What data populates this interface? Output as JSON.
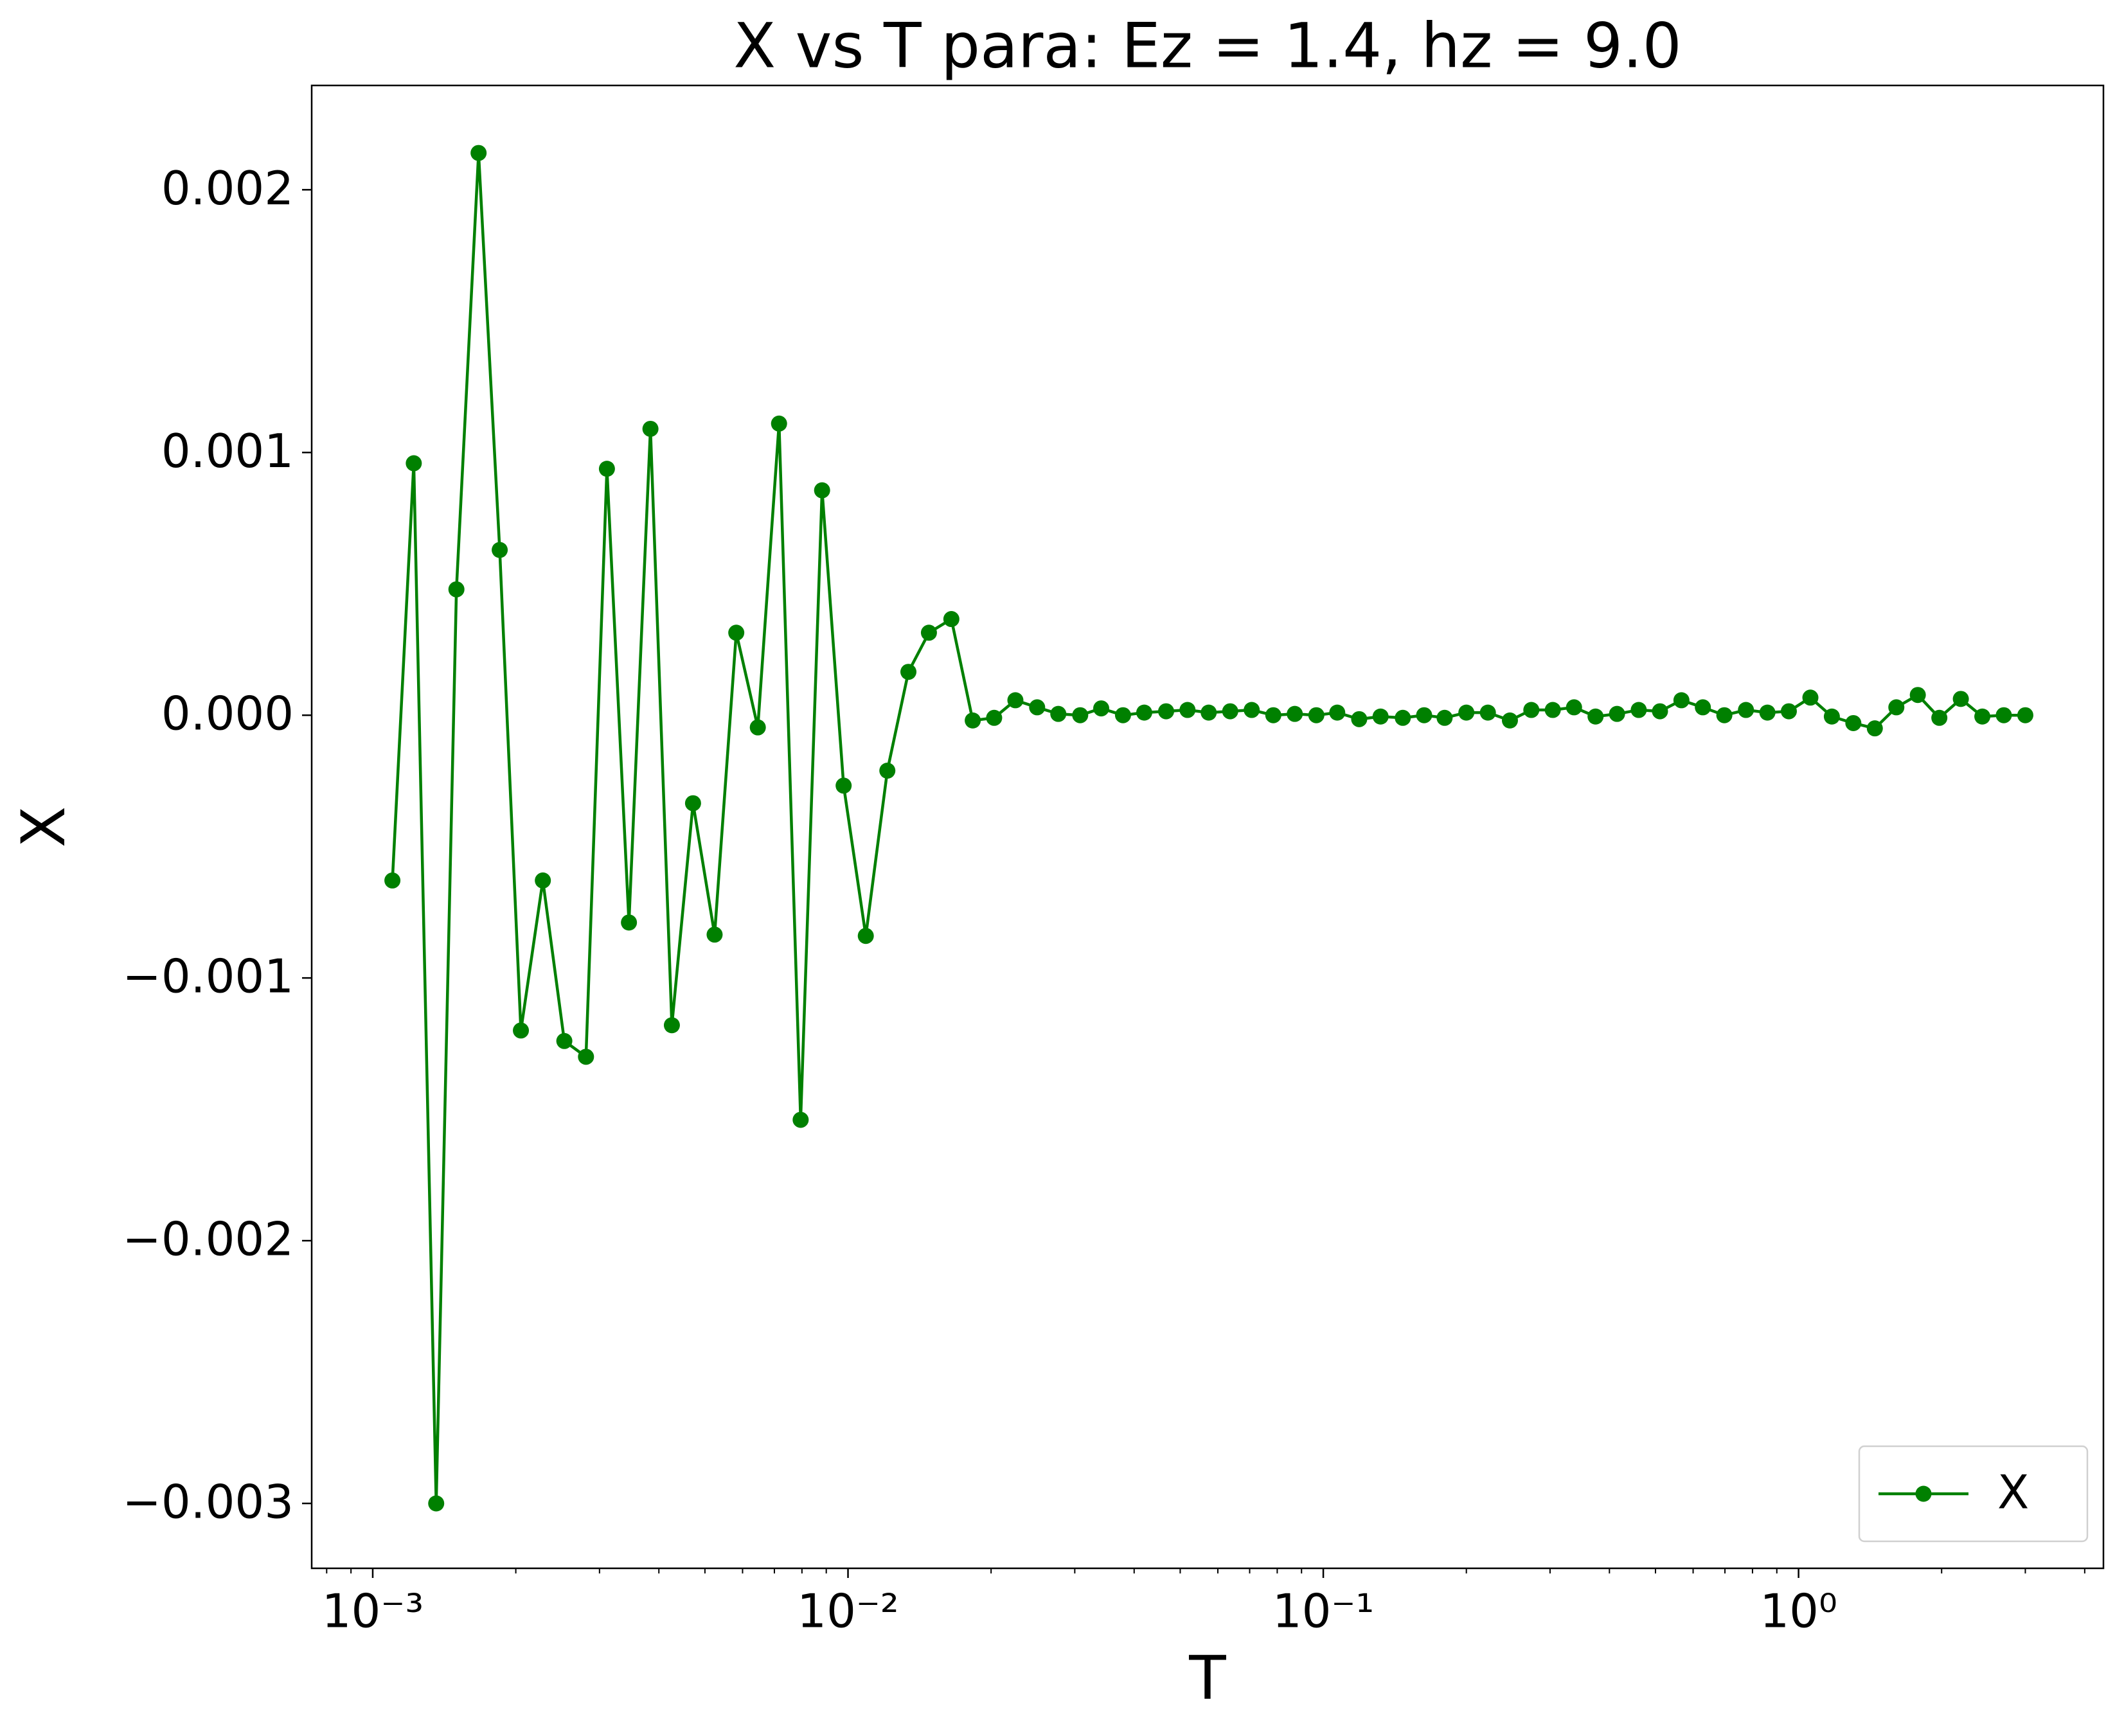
{
  "chart_data": {
    "type": "line",
    "title": "X vs T para: Ez = 1.4, hz = 9.0",
    "xlabel": "T",
    "ylabel": "X",
    "xscale": "log",
    "legend": "lower right",
    "grid": false,
    "x": [
      0.0011,
      0.00122,
      0.00136,
      0.0015,
      0.00167,
      0.00185,
      0.00205,
      0.00228,
      0.00253,
      0.00281,
      0.00311,
      0.00346,
      0.00384,
      0.00426,
      0.00472,
      0.00524,
      0.00582,
      0.00646,
      0.00716,
      0.00795,
      0.00882,
      0.00979,
      0.0109,
      0.0121,
      0.0134,
      0.0148,
      0.0165,
      0.0183,
      0.0203,
      0.0225,
      0.025,
      0.0277,
      0.0308,
      0.0341,
      0.0379,
      0.042,
      0.0467,
      0.0518,
      0.0574,
      0.0637,
      0.0707,
      0.0785,
      0.0871,
      0.0967,
      0.107,
      0.119,
      0.132,
      0.147,
      0.163,
      0.18,
      0.2,
      0.222,
      0.247,
      0.274,
      0.304,
      0.337,
      0.374,
      0.415,
      0.461,
      0.511,
      0.567,
      0.629,
      0.698,
      0.775,
      0.86,
      0.954,
      1.059,
      1.175,
      1.304,
      1.447,
      1.606,
      1.782,
      1.978,
      2.195,
      2.436,
      2.703,
      3.0
    ],
    "series": [
      {
        "name": "X",
        "color": "#008000",
        "marker": "o",
        "values": [
          -0.000629,
          0.000959,
          -0.003,
          0.000479,
          0.00214,
          0.000629,
          -0.0012,
          -0.000629,
          -0.00124,
          -0.0013,
          0.000938,
          -0.000789,
          0.00109,
          -0.00118,
          -0.000335,
          -0.000835,
          0.000314,
          -4.64e-05,
          0.00111,
          -0.00154,
          0.000856,
          -0.000268,
          -0.00084,
          -0.000211,
          0.000165,
          0.000314,
          0.000366,
          -2e-05,
          -1e-05,
          5.7e-05,
          3e-05,
          5e-06,
          0,
          2.6e-05,
          0,
          1e-05,
          1.5e-05,
          2e-05,
          1e-05,
          1.5e-05,
          2e-05,
          0,
          5e-06,
          0,
          1e-05,
          -1.5e-05,
          -5e-06,
          -1e-05,
          0,
          -1e-05,
          1e-05,
          1e-05,
          -2e-05,
          2e-05,
          2e-05,
          3e-05,
          -5e-06,
          5e-06,
          2e-05,
          1.5e-05,
          5.7e-05,
          3e-05,
          0,
          2e-05,
          1e-05,
          1.5e-05,
          6.7e-05,
          -5e-06,
          -3e-05,
          -5e-05,
          3e-05,
          7.7e-05,
          -1e-05,
          6.2e-05,
          -5e-06,
          0,
          0
        ]
      }
    ],
    "xlim": [
      0.000744,
      4.38
    ],
    "ylim": [
      -0.003247,
      0.002397
    ],
    "xticks": [
      {
        "value": 0.001,
        "label": "10⁻³"
      },
      {
        "value": 0.01,
        "label": "10⁻²"
      },
      {
        "value": 0.1,
        "label": "10⁻¹"
      },
      {
        "value": 1,
        "label": "10⁰"
      }
    ],
    "minor_xticks": [
      0.0008,
      0.0009,
      0.002,
      0.003,
      0.004,
      0.005,
      0.006,
      0.007,
      0.008,
      0.009,
      0.02,
      0.03,
      0.04,
      0.05,
      0.06,
      0.07,
      0.08,
      0.09,
      0.2,
      0.3,
      0.4,
      0.5,
      0.6,
      0.7,
      0.8,
      0.9,
      2,
      3,
      4
    ],
    "yticks": [
      {
        "value": -0.003,
        "label": "−0.003"
      },
      {
        "value": -0.002,
        "label": "−0.002"
      },
      {
        "value": -0.001,
        "label": "−0.001"
      },
      {
        "value": 0,
        "label": "0.000"
      },
      {
        "value": 0.001,
        "label": "0.001"
      },
      {
        "value": 0.002,
        "label": "0.002"
      }
    ]
  }
}
